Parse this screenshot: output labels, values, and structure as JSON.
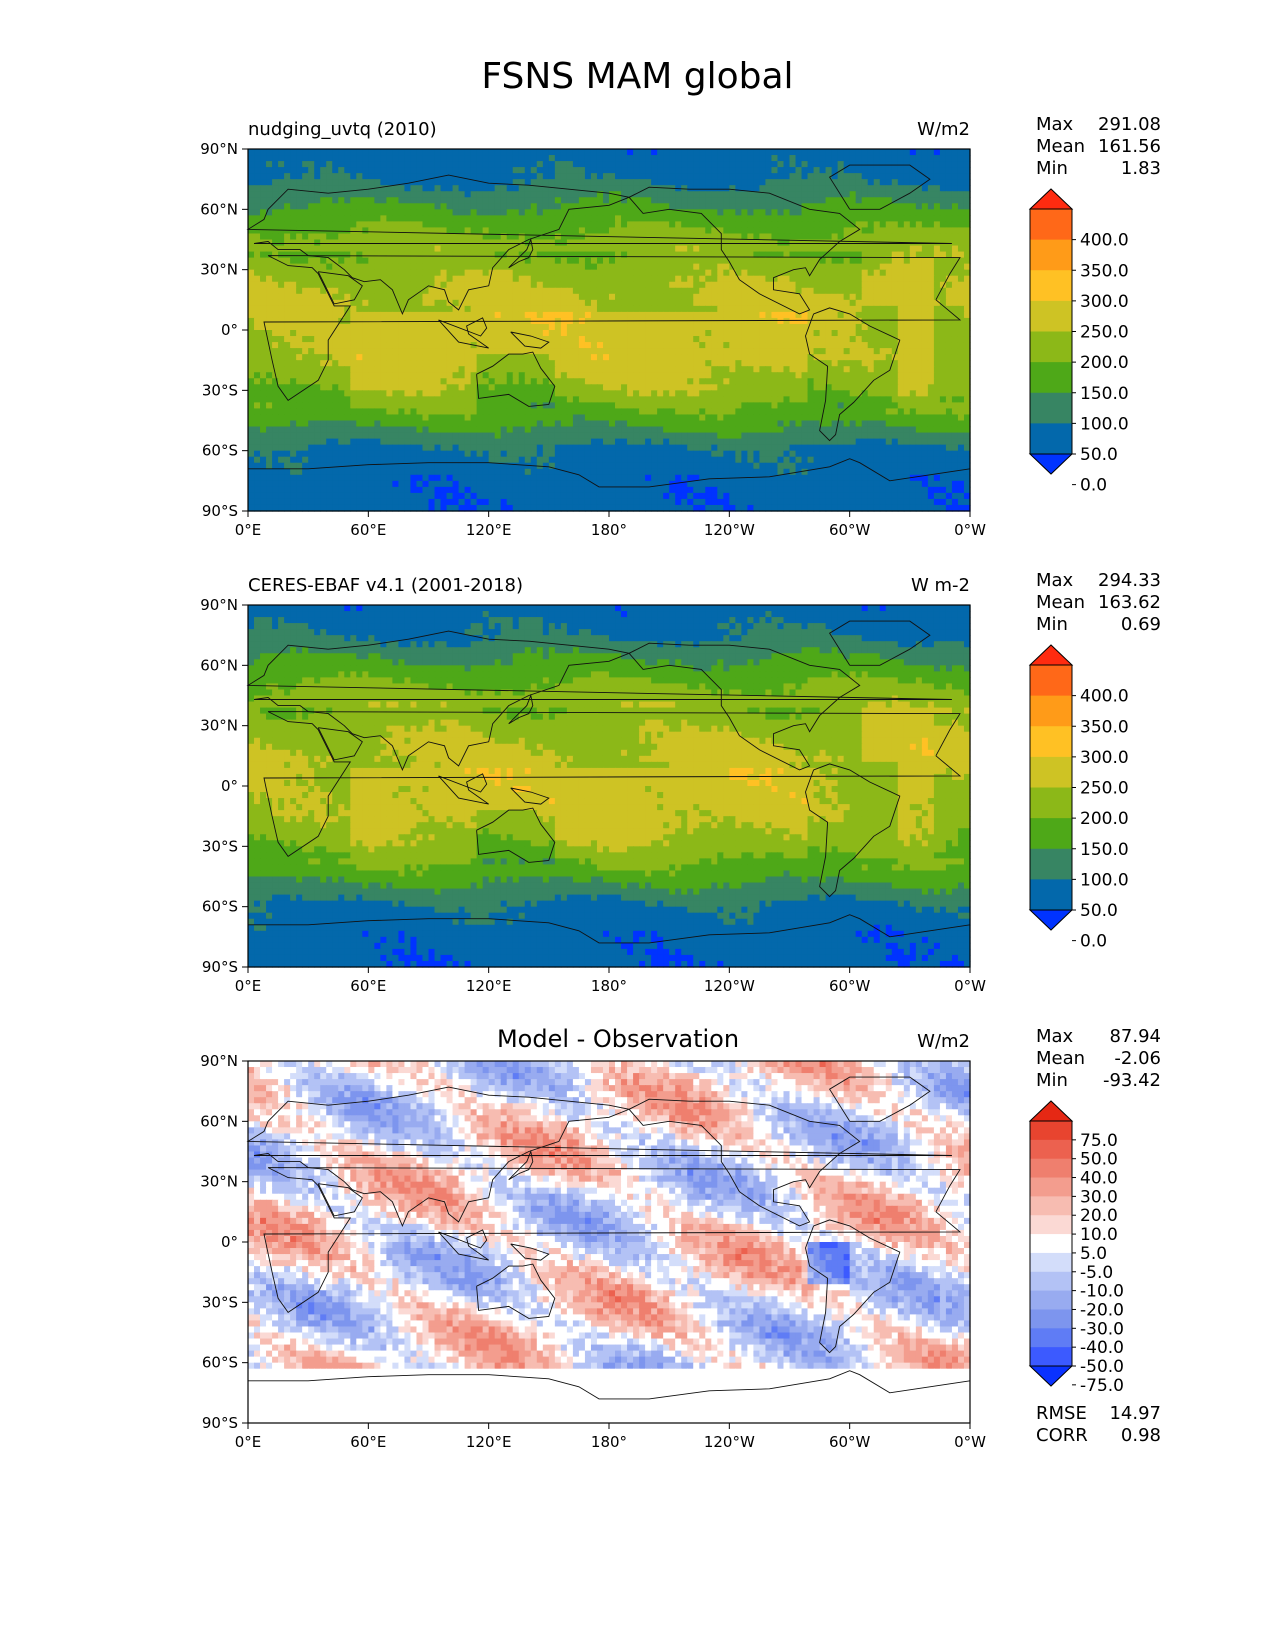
{
  "title": "FSNS MAM global",
  "colors": {
    "abs_levels": [
      "#0033ff",
      "#0368ab",
      "#378563",
      "#4ea818",
      "#8cb818",
      "#cec324",
      "#ffc124",
      "#ff9b18",
      "#ff6818",
      "#ff2b10"
    ],
    "abs_under": "#0033ff",
    "abs_over": "#ff2b10",
    "diff_levels": [
      "#0a32ff",
      "#3c5aff",
      "#5f7cf5",
      "#7d95ee",
      "#98abf0",
      "#b3c2f5",
      "#d3ddfa",
      "#ffffff",
      "#fbd9d4",
      "#f7bcb1",
      "#f39d8e",
      "#ef7f6e",
      "#ec614f",
      "#e8442f",
      "#e52814"
    ],
    "diff_under": "#0a32ff",
    "diff_over": "#e52814"
  },
  "axes": {
    "lat_ticks": [
      "90°N",
      "60°N",
      "30°N",
      "0°",
      "30°S",
      "60°S",
      "90°S"
    ],
    "lon_ticks": [
      "0°E",
      "60°E",
      "120°E",
      "180°",
      "120°W",
      "60°W",
      "0°W"
    ]
  },
  "panels": [
    {
      "left_title": "nudging_uvtq (2010)",
      "center_title": "",
      "units": "W/m2",
      "stats": [
        [
          "Max",
          "291.08"
        ],
        [
          "Mean",
          "161.56"
        ],
        [
          "Min",
          "1.83"
        ]
      ],
      "colorbar_labels": [
        "400.0",
        "350.0",
        "300.0",
        "250.0",
        "200.0",
        "150.0",
        "100.0",
        "50.0",
        "0.0"
      ],
      "extra_stats": []
    },
    {
      "left_title": "CERES-EBAF v4.1 (2001-2018)",
      "center_title": "",
      "units": "W m-2",
      "stats": [
        [
          "Max",
          "294.33"
        ],
        [
          "Mean",
          "163.62"
        ],
        [
          "Min",
          "0.69"
        ]
      ],
      "colorbar_labels": [
        "400.0",
        "350.0",
        "300.0",
        "250.0",
        "200.0",
        "150.0",
        "100.0",
        "50.0",
        "0.0"
      ],
      "extra_stats": []
    },
    {
      "left_title": "",
      "center_title": "Model - Observation",
      "units": "W/m2",
      "stats": [
        [
          "Max",
          "87.94"
        ],
        [
          "Mean",
          "-2.06"
        ],
        [
          "Min",
          "-93.42"
        ]
      ],
      "colorbar_labels": [
        "75.0",
        "50.0",
        "40.0",
        "30.0",
        "20.0",
        "10.0",
        "5.0",
        "-5.0",
        "-10.0",
        "-20.0",
        "-30.0",
        "-40.0",
        "-50.0",
        "-75.0"
      ],
      "extra_stats": [
        [
          "RMSE",
          "14.97"
        ],
        [
          "CORR",
          "0.98"
        ]
      ]
    }
  ],
  "chart_data": [
    {
      "type": "heatmap",
      "title": "nudging_uvtq (2010)",
      "units": "W/m2",
      "projection": "cylindrical, 0°E to 0°W, 90°S to 90°N",
      "levels": [
        0,
        50,
        100,
        150,
        200,
        250,
        300,
        350,
        400
      ],
      "zonal_profile": {
        "lat": [
          90,
          75,
          60,
          45,
          30,
          15,
          0,
          -15,
          -30,
          -45,
          -60,
          -75,
          -90
        ],
        "value": [
          20,
          40,
          110,
          165,
          215,
          245,
          225,
          225,
          190,
          120,
          40,
          20,
          15
        ]
      },
      "stats": {
        "max": 291.08,
        "mean": 161.56,
        "min": 1.83
      }
    },
    {
      "type": "heatmap",
      "title": "CERES-EBAF v4.1 (2001-2018)",
      "units": "W m-2",
      "projection": "cylindrical, 0°E to 0°W, 90°S to 90°N",
      "levels": [
        0,
        50,
        100,
        150,
        200,
        250,
        300,
        350,
        400
      ],
      "zonal_profile": {
        "lat": [
          90,
          75,
          60,
          45,
          30,
          15,
          0,
          -15,
          -30,
          -45,
          -60,
          -75,
          -90
        ],
        "value": [
          20,
          45,
          115,
          170,
          220,
          245,
          225,
          222,
          188,
          118,
          40,
          20,
          15
        ]
      },
      "stats": {
        "max": 294.33,
        "mean": 163.62,
        "min": 0.69
      }
    },
    {
      "type": "heatmap",
      "title": "Model - Observation",
      "units": "W/m2",
      "projection": "cylindrical, 0°E to 0°W, 90°S to 90°N",
      "levels": [
        -75,
        -50,
        -40,
        -30,
        -20,
        -10,
        -5,
        5,
        10,
        20,
        30,
        40,
        50,
        75
      ],
      "stats": {
        "max": 87.94,
        "mean": -2.06,
        "min": -93.42,
        "rmse": 14.97,
        "corr": 0.98
      }
    }
  ]
}
